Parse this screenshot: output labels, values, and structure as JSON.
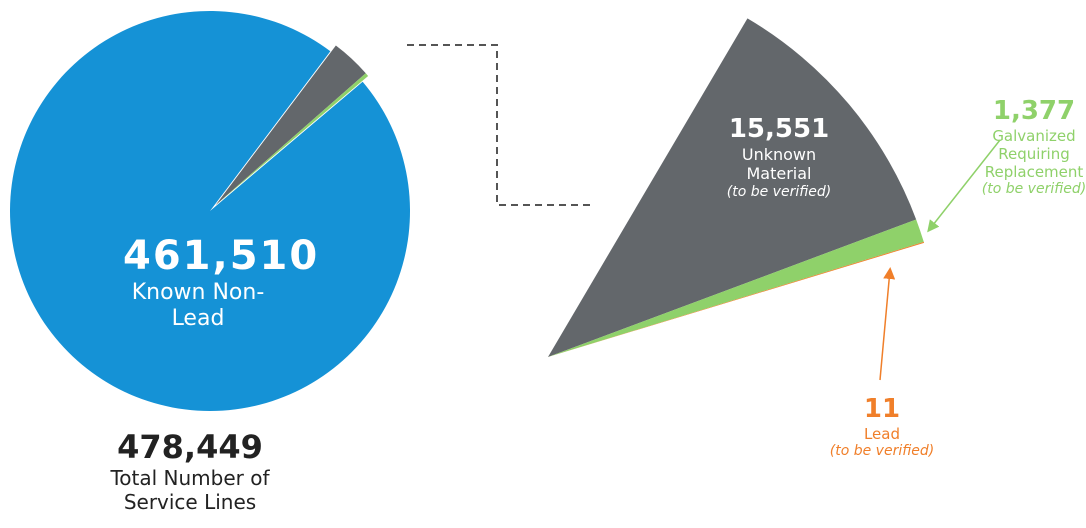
{
  "chart_data": {
    "type": "pie",
    "categories": [
      "Known Non-Lead",
      "Unknown Material",
      "Galvanized Requiring Replacement",
      "Lead"
    ],
    "values": [
      461510,
      15551,
      1377,
      11
    ],
    "value_labels": [
      "461,510",
      "15,551",
      "1,377",
      "11"
    ],
    "notes": [
      null,
      "(to be verified)",
      "(to be verified)",
      "(to be verified)"
    ],
    "colors": [
      "#1592d6",
      "#63676b",
      "#8fd16a",
      "#f07f2a"
    ],
    "total": 478449,
    "total_label": "478,449",
    "total_caption": "Total Number of Service Lines"
  }
}
